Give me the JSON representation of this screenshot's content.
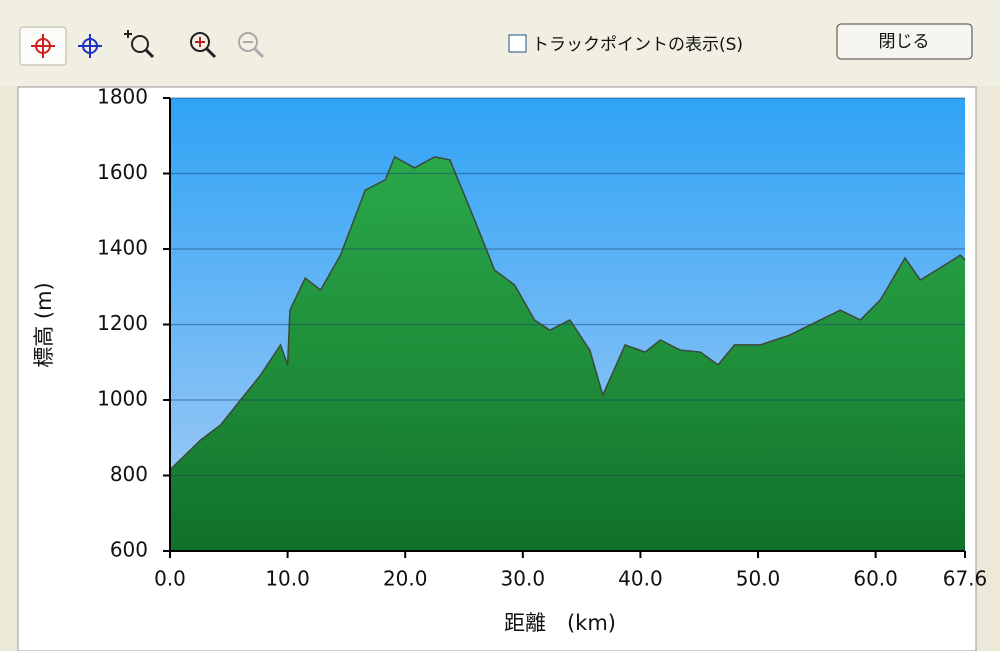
{
  "toolbar": {
    "checkbox_label": "トラックポイントの表示(S)",
    "close_button": "閉じる"
  },
  "chart_data": {
    "type": "area",
    "x_label": "距離　(km)",
    "y_label": "標高 (m)",
    "x": [
      0,
      2.6,
      4.3,
      6.0,
      7.7,
      9.4,
      10.0,
      10.2,
      11.5,
      12.8,
      14.5,
      16.6,
      18.3,
      19.1,
      20.8,
      22.5,
      23.8,
      25.9,
      27.6,
      29.3,
      31.0,
      32.3,
      34.0,
      35.7,
      36.8,
      38.7,
      40.4,
      41.7,
      43.4,
      45.1,
      46.6,
      48.0,
      50.2,
      52.7,
      55.3,
      57.0,
      58.7,
      60.4,
      62.5,
      63.8,
      65.9,
      67.2,
      67.6
    ],
    "series": [
      {
        "color": "#2a9a3e",
        "values": [
          815,
          894,
          934,
          1000,
          1066,
          1146,
          1093,
          1238,
          1323,
          1291,
          1384,
          1556,
          1583,
          1644,
          1615,
          1644,
          1636,
          1477,
          1344,
          1305,
          1212,
          1185,
          1212,
          1132,
          1013,
          1146,
          1127,
          1159,
          1132,
          1127,
          1093,
          1146,
          1146,
          1172,
          1212,
          1238,
          1212,
          1265,
          1376,
          1318,
          1358,
          1384,
          1371
        ]
      }
    ],
    "xlim": [
      0,
      67.6
    ],
    "xticks": [
      {
        "value": 0,
        "label": "0.0"
      },
      {
        "value": 10,
        "label": "10.0"
      },
      {
        "value": 20,
        "label": "20.0"
      },
      {
        "value": 30,
        "label": "30.0"
      },
      {
        "value": 40,
        "label": "40.0"
      },
      {
        "value": 50,
        "label": "50.0"
      },
      {
        "value": 60,
        "label": "60.0"
      },
      67.6
    ],
    "ylim": [
      600,
      1800
    ],
    "yticks": [
      600,
      800,
      1000,
      1200,
      1400,
      1600,
      1800
    ],
    "grid": true
  }
}
